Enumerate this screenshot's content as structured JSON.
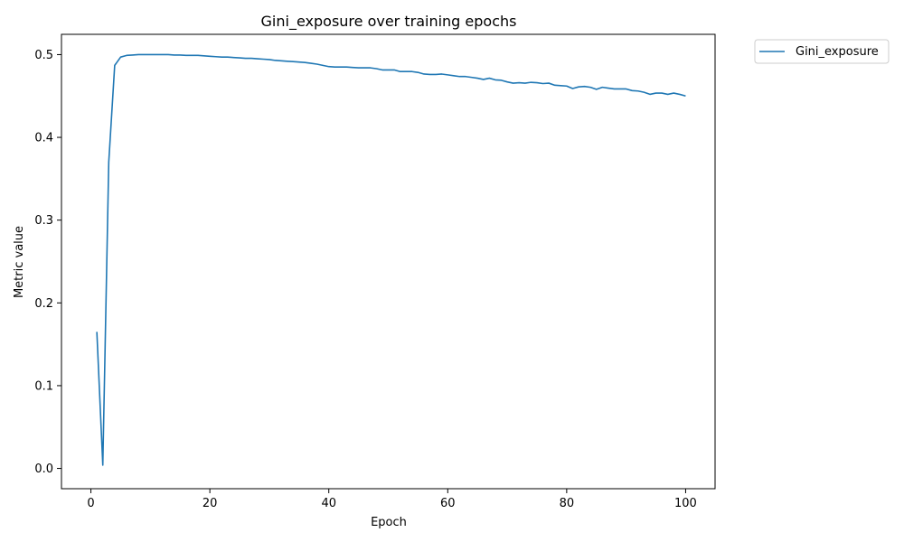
{
  "chart_data": {
    "type": "line",
    "title": "Gini_exposure over training epochs",
    "xlabel": "Epoch",
    "ylabel": "Metric value",
    "xlim": [
      -4.95,
      104.95
    ],
    "ylim": [
      -0.0245,
      0.5245
    ],
    "xticks": [
      0,
      20,
      40,
      60,
      80,
      100
    ],
    "yticks": [
      0.0,
      0.1,
      0.2,
      0.3,
      0.4,
      0.5
    ],
    "xtick_labels": [
      "0",
      "20",
      "40",
      "60",
      "80",
      "100"
    ],
    "ytick_labels": [
      "0.0",
      "0.1",
      "0.2",
      "0.3",
      "0.4",
      "0.5"
    ],
    "grid": false,
    "legend_position": "outside-top-right",
    "series": [
      {
        "name": "Gini_exposure",
        "color": "#1f77b4",
        "x": [
          1,
          2,
          3,
          4,
          5,
          6,
          7,
          8,
          9,
          10,
          11,
          12,
          13,
          14,
          15,
          16,
          17,
          18,
          19,
          20,
          21,
          22,
          23,
          24,
          25,
          26,
          27,
          28,
          29,
          30,
          31,
          32,
          33,
          34,
          35,
          36,
          37,
          38,
          39,
          40,
          41,
          42,
          43,
          44,
          45,
          46,
          47,
          48,
          49,
          50,
          51,
          52,
          53,
          54,
          55,
          56,
          57,
          58,
          59,
          60,
          61,
          62,
          63,
          64,
          65,
          66,
          67,
          68,
          69,
          70,
          71,
          72,
          73,
          74,
          75,
          76,
          77,
          78,
          79,
          80,
          81,
          82,
          83,
          84,
          85,
          86,
          87,
          88,
          89,
          90,
          91,
          92,
          93,
          94,
          95,
          96,
          97,
          98,
          99,
          100
        ],
        "y": [
          0.165,
          0.004,
          0.37,
          0.487,
          0.497,
          0.499,
          0.4995,
          0.5,
          0.5,
          0.5,
          0.5,
          0.5,
          0.5,
          0.4995,
          0.4995,
          0.499,
          0.499,
          0.499,
          0.4985,
          0.498,
          0.4975,
          0.497,
          0.497,
          0.4965,
          0.496,
          0.4955,
          0.4955,
          0.495,
          0.4945,
          0.494,
          0.493,
          0.4925,
          0.492,
          0.4915,
          0.491,
          0.4905,
          0.4895,
          0.4885,
          0.487,
          0.4855,
          0.485,
          0.485,
          0.485,
          0.4845,
          0.484,
          0.484,
          0.484,
          0.483,
          0.4815,
          0.4815,
          0.4815,
          0.4795,
          0.4795,
          0.4795,
          0.4785,
          0.4765,
          0.476,
          0.476,
          0.4765,
          0.4755,
          0.4745,
          0.4735,
          0.4735,
          0.4725,
          0.4715,
          0.47,
          0.4715,
          0.4695,
          0.469,
          0.467,
          0.4655,
          0.466,
          0.4655,
          0.4665,
          0.466,
          0.465,
          0.4655,
          0.463,
          0.4625,
          0.462,
          0.459,
          0.461,
          0.4615,
          0.4605,
          0.458,
          0.4605,
          0.4595,
          0.4585,
          0.4585,
          0.4585,
          0.4565,
          0.456,
          0.4545,
          0.452,
          0.4535,
          0.4535,
          0.452,
          0.4535,
          0.452,
          0.45
        ]
      }
    ]
  }
}
